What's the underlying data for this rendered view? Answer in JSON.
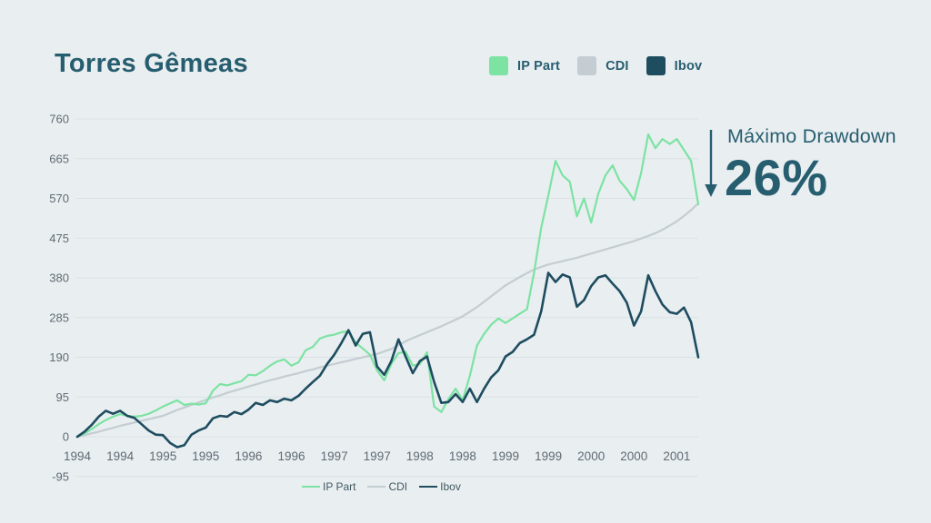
{
  "page": {
    "background_color": "#e9eef1"
  },
  "header": {
    "title": "Torres Gêmeas"
  },
  "legend": {
    "items": [
      {
        "label": "IP Part",
        "color": "#7ce3a2"
      },
      {
        "label": "CDI",
        "color": "#c4cdd2"
      },
      {
        "label": "Ibov",
        "color": "#1f4d60"
      }
    ]
  },
  "annotation": {
    "label": "Máximo Drawdown",
    "value": "26%",
    "arrow_icon": "down-arrow-icon",
    "color": "#275e6f"
  },
  "chart_data": {
    "type": "line",
    "title": "Torres Gêmeas",
    "grid": "horizontal",
    "legend_position": "top-right and below chart",
    "ylim": [
      -95,
      760
    ],
    "y_ticks": [
      760,
      665,
      570,
      475,
      380,
      285,
      190,
      95,
      0,
      -95
    ],
    "x_tick_labels": [
      "1994",
      "1994",
      "1995",
      "1995",
      "1996",
      "1996",
      "1997",
      "1997",
      "1998",
      "1998",
      "1999",
      "1999",
      "2000",
      "2000",
      "2001"
    ],
    "x_tick_indices": [
      0,
      6,
      12,
      18,
      24,
      30,
      36,
      42,
      48,
      54,
      60,
      66,
      72,
      78,
      84
    ],
    "x_unit": "months, semi-annual ticks",
    "series": [
      {
        "name": "IP Part",
        "color": "#7ce3a2",
        "width": 2.2,
        "values": [
          0,
          8,
          18,
          30,
          40,
          48,
          54,
          50,
          48,
          50,
          55,
          63,
          72,
          80,
          87,
          76,
          79,
          77,
          80,
          110,
          126,
          123,
          128,
          133,
          148,
          147,
          157,
          170,
          180,
          185,
          170,
          178,
          207,
          215,
          235,
          241,
          244,
          250,
          252,
          225,
          211,
          196,
          159,
          135,
          174,
          200,
          203,
          170,
          174,
          202,
          72,
          59,
          90,
          115,
          87,
          146,
          218,
          246,
          268,
          283,
          272,
          283,
          294,
          305,
          392,
          500,
          577,
          660,
          625,
          610,
          527,
          570,
          512,
          581,
          625,
          649,
          612,
          592,
          566,
          631,
          723,
          690,
          712,
          700,
          712,
          686,
          660,
          556
        ]
      },
      {
        "name": "CDI",
        "color": "#c4cdd2",
        "width": 2.2,
        "values": [
          0,
          4,
          8,
          12,
          17,
          21,
          26,
          30,
          34,
          38,
          42,
          46,
          50,
          57,
          64,
          70,
          76,
          82,
          88,
          94,
          99,
          105,
          110,
          115,
          120,
          125,
          130,
          135,
          139,
          144,
          148,
          152,
          157,
          161,
          166,
          170,
          174,
          178,
          182,
          186,
          190,
          194,
          198,
          204,
          210,
          219,
          228,
          236,
          243,
          250,
          257,
          264,
          272,
          280,
          288,
          299,
          310,
          323,
          336,
          349,
          362,
          372,
          382,
          391,
          400,
          406,
          412,
          416,
          420,
          424,
          428,
          433,
          438,
          443,
          448,
          453,
          458,
          463,
          468,
          474,
          480,
          487,
          495,
          505,
          515,
          528,
          542,
          558
        ]
      },
      {
        "name": "Ibov",
        "color": "#1f4d60",
        "width": 2.6,
        "values": [
          0,
          12,
          28,
          48,
          62,
          55,
          62,
          50,
          45,
          30,
          15,
          5,
          4,
          -15,
          -25,
          -20,
          5,
          15,
          22,
          44,
          50,
          48,
          59,
          54,
          65,
          81,
          76,
          87,
          83,
          91,
          87,
          98,
          115,
          131,
          146,
          174,
          196,
          224,
          255,
          218,
          246,
          250,
          168,
          148,
          181,
          233,
          192,
          152,
          181,
          192,
          131,
          81,
          83,
          102,
          83,
          115,
          83,
          115,
          142,
          159,
          192,
          203,
          224,
          233,
          244,
          300,
          392,
          370,
          388,
          381,
          311,
          327,
          360,
          381,
          386,
          366,
          348,
          320,
          266,
          300,
          386,
          348,
          316,
          298,
          294,
          309,
          274,
          190
        ]
      }
    ]
  }
}
